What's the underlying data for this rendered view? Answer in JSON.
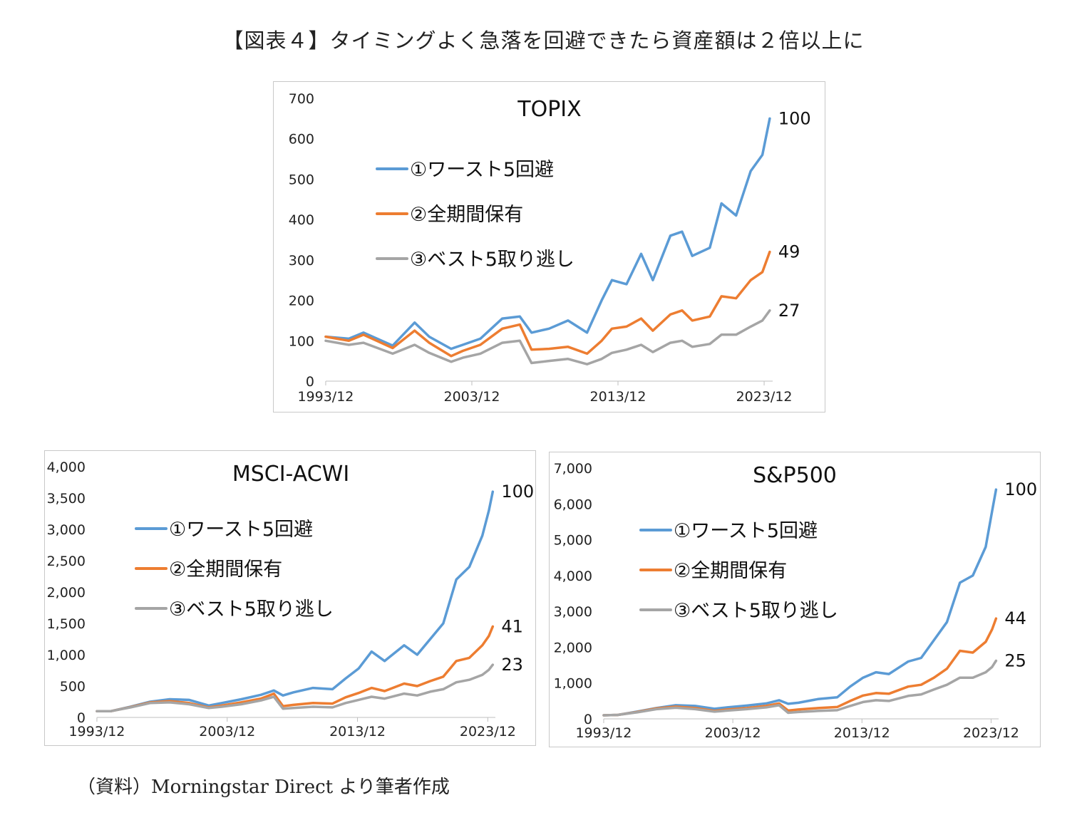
{
  "figure_title": "【図表４】タイミングよく急落を回避できたら資産額は２倍以上に",
  "source": "（資料）Morningstar Direct より筆者作成",
  "colors": {
    "worst5_avoided": "#5b9bd5",
    "full_hold": "#ed7d31",
    "best5_missed": "#a5a5a5"
  },
  "chart_data": [
    {
      "type": "line",
      "title": "TOPIX",
      "x_ticks": [
        "1993/12",
        "2003/12",
        "2013/12",
        "2023/12"
      ],
      "x_range": [
        1993.92,
        2024.5
      ],
      "y_ticks": [
        "0",
        "100",
        "200",
        "300",
        "400",
        "500",
        "600",
        "700"
      ],
      "ylim": [
        0,
        700
      ],
      "legend_position": "upper-left",
      "series": [
        {
          "name": "①ワースト5回避",
          "end_label": "100",
          "x": [
            1993.92,
            1995.5,
            1996.5,
            1998.5,
            2000.0,
            2001.0,
            2002.5,
            2003.3,
            2004.5,
            2006.0,
            2007.2,
            2008.0,
            2009.2,
            2010.5,
            2011.8,
            2012.8,
            2013.5,
            2014.5,
            2015.5,
            2016.3,
            2017.5,
            2018.3,
            2019.0,
            2020.2,
            2021.0,
            2022.0,
            2023.0,
            2023.8,
            2024.3
          ],
          "y": [
            110,
            105,
            120,
            88,
            145,
            110,
            80,
            90,
            105,
            155,
            160,
            120,
            130,
            150,
            120,
            200,
            250,
            240,
            315,
            250,
            360,
            370,
            310,
            330,
            440,
            410,
            520,
            560,
            650
          ]
        },
        {
          "name": "②全期間保有",
          "end_label": "49",
          "x": [
            1993.92,
            1995.5,
            1996.5,
            1998.5,
            2000.0,
            2001.0,
            2002.5,
            2003.3,
            2004.5,
            2006.0,
            2007.2,
            2008.0,
            2009.2,
            2010.5,
            2011.8,
            2012.8,
            2013.5,
            2014.5,
            2015.5,
            2016.3,
            2017.5,
            2018.3,
            2019.0,
            2020.2,
            2021.0,
            2022.0,
            2023.0,
            2023.8,
            2024.3
          ],
          "y": [
            110,
            100,
            115,
            82,
            125,
            95,
            62,
            75,
            90,
            130,
            140,
            78,
            80,
            85,
            68,
            100,
            130,
            135,
            155,
            125,
            165,
            175,
            150,
            160,
            210,
            205,
            250,
            270,
            320
          ]
        },
        {
          "name": "③ベスト5取り逃し",
          "end_label": "27",
          "x": [
            1993.92,
            1995.5,
            1996.5,
            1998.5,
            2000.0,
            2001.0,
            2002.5,
            2003.3,
            2004.5,
            2006.0,
            2007.2,
            2008.0,
            2009.2,
            2010.5,
            2011.8,
            2012.8,
            2013.5,
            2014.5,
            2015.5,
            2016.3,
            2017.5,
            2018.3,
            2019.0,
            2020.2,
            2021.0,
            2022.0,
            2023.0,
            2023.8,
            2024.3
          ],
          "y": [
            100,
            90,
            95,
            68,
            90,
            70,
            48,
            58,
            68,
            95,
            100,
            45,
            50,
            55,
            42,
            55,
            70,
            78,
            90,
            72,
            95,
            100,
            85,
            92,
            115,
            115,
            135,
            150,
            175
          ]
        }
      ]
    },
    {
      "type": "line",
      "title": "MSCI-ACWI",
      "x_ticks": [
        "1993/12",
        "2003/12",
        "2013/12",
        "2023/12"
      ],
      "x_range": [
        1993.92,
        2024.5
      ],
      "y_ticks": [
        "0",
        "500",
        "1,000",
        "1,500",
        "2,000",
        "2,500",
        "3,000",
        "3,500",
        "4,000"
      ],
      "ylim": [
        0,
        4000
      ],
      "legend_position": "upper-left",
      "series": [
        {
          "name": "①ワースト5回避",
          "end_label": "100",
          "x": [
            1993.92,
            1995.0,
            1996.5,
            1998.0,
            1999.5,
            2001.0,
            2002.5,
            2003.5,
            2005.0,
            2006.5,
            2007.5,
            2008.2,
            2009.0,
            2010.5,
            2012.0,
            2013.0,
            2014.0,
            2015.0,
            2016.0,
            2017.5,
            2018.5,
            2019.5,
            2020.5,
            2021.5,
            2022.5,
            2023.5,
            2024.0,
            2024.3
          ],
          "y": [
            100,
            100,
            170,
            250,
            290,
            280,
            190,
            230,
            290,
            360,
            430,
            350,
            400,
            470,
            450,
            620,
            780,
            1050,
            900,
            1150,
            1000,
            1250,
            1500,
            2200,
            2400,
            2900,
            3300,
            3600
          ]
        },
        {
          "name": "②全期間保有",
          "end_label": "41",
          "x": [
            1993.92,
            1995.0,
            1996.5,
            1998.0,
            1999.5,
            2001.0,
            2002.5,
            2003.5,
            2005.0,
            2006.5,
            2007.5,
            2008.2,
            2009.0,
            2010.5,
            2012.0,
            2013.0,
            2014.0,
            2015.0,
            2016.0,
            2017.5,
            2018.5,
            2019.5,
            2020.5,
            2021.5,
            2022.5,
            2023.5,
            2024.0,
            2024.3
          ],
          "y": [
            100,
            100,
            165,
            240,
            260,
            230,
            160,
            190,
            240,
            300,
            380,
            180,
            200,
            230,
            220,
            320,
            390,
            470,
            420,
            540,
            500,
            580,
            650,
            900,
            950,
            1150,
            1300,
            1450
          ]
        },
        {
          "name": "③ベスト5取り逃し",
          "end_label": "23",
          "x": [
            1993.92,
            1995.0,
            1996.5,
            1998.0,
            1999.5,
            2001.0,
            2002.5,
            2003.5,
            2005.0,
            2006.5,
            2007.5,
            2008.2,
            2009.0,
            2010.5,
            2012.0,
            2013.0,
            2014.0,
            2015.0,
            2016.0,
            2017.5,
            2018.5,
            2019.5,
            2020.5,
            2021.5,
            2022.5,
            2023.5,
            2024.0,
            2024.3
          ],
          "y": [
            100,
            100,
            160,
            230,
            240,
            210,
            150,
            170,
            210,
            270,
            330,
            140,
            150,
            170,
            160,
            230,
            280,
            330,
            300,
            380,
            350,
            410,
            450,
            560,
            600,
            680,
            760,
            840
          ]
        }
      ]
    },
    {
      "type": "line",
      "title": "S&P500",
      "x_ticks": [
        "1993/12",
        "2003/12",
        "2013/12",
        "2023/12"
      ],
      "x_range": [
        1993.92,
        2024.5
      ],
      "y_ticks": [
        "0",
        "1,000",
        "2,000",
        "3,000",
        "4,000",
        "5,000",
        "6,000",
        "7,000"
      ],
      "ylim": [
        0,
        7000
      ],
      "legend_position": "upper-left",
      "series": [
        {
          "name": "①ワースト5回避",
          "end_label": "100",
          "x": [
            1993.92,
            1995.0,
            1996.5,
            1998.0,
            1999.5,
            2001.0,
            2002.5,
            2003.5,
            2005.0,
            2006.5,
            2007.5,
            2008.2,
            2009.0,
            2010.5,
            2012.0,
            2013.0,
            2014.0,
            2015.0,
            2016.0,
            2017.5,
            2018.5,
            2019.5,
            2020.5,
            2021.5,
            2022.5,
            2023.5,
            2024.0,
            2024.3
          ],
          "y": [
            100,
            110,
            200,
            300,
            380,
            360,
            280,
            320,
            370,
            430,
            520,
            420,
            450,
            550,
            600,
            900,
            1150,
            1300,
            1250,
            1600,
            1700,
            2200,
            2700,
            3800,
            4000,
            4800,
            5800,
            6400
          ]
        },
        {
          "name": "②全期間保有",
          "end_label": "44",
          "x": [
            1993.92,
            1995.0,
            1996.5,
            1998.0,
            1999.5,
            2001.0,
            2002.5,
            2003.5,
            2005.0,
            2006.5,
            2007.5,
            2008.2,
            2009.0,
            2010.5,
            2012.0,
            2013.0,
            2014.0,
            2015.0,
            2016.0,
            2017.5,
            2018.5,
            2019.5,
            2020.5,
            2021.5,
            2022.5,
            2023.5,
            2024.0,
            2024.3
          ],
          "y": [
            100,
            110,
            190,
            290,
            340,
            300,
            220,
            260,
            300,
            360,
            430,
            230,
            260,
            300,
            330,
            500,
            650,
            720,
            700,
            900,
            950,
            1150,
            1400,
            1900,
            1850,
            2150,
            2500,
            2800
          ]
        },
        {
          "name": "③ベスト5取り逃し",
          "end_label": "25",
          "x": [
            1993.92,
            1995.0,
            1996.5,
            1998.0,
            1999.5,
            2001.0,
            2002.5,
            2003.5,
            2005.0,
            2006.5,
            2007.5,
            2008.2,
            2009.0,
            2010.5,
            2012.0,
            2013.0,
            2014.0,
            2015.0,
            2016.0,
            2017.5,
            2018.5,
            2019.5,
            2020.5,
            2021.5,
            2022.5,
            2023.5,
            2024.0,
            2024.3
          ],
          "y": [
            100,
            110,
            180,
            270,
            310,
            270,
            200,
            230,
            270,
            320,
            380,
            170,
            190,
            220,
            240,
            360,
            470,
            520,
            500,
            640,
            680,
            820,
            950,
            1150,
            1150,
            1300,
            1450,
            1620
          ]
        }
      ]
    }
  ]
}
